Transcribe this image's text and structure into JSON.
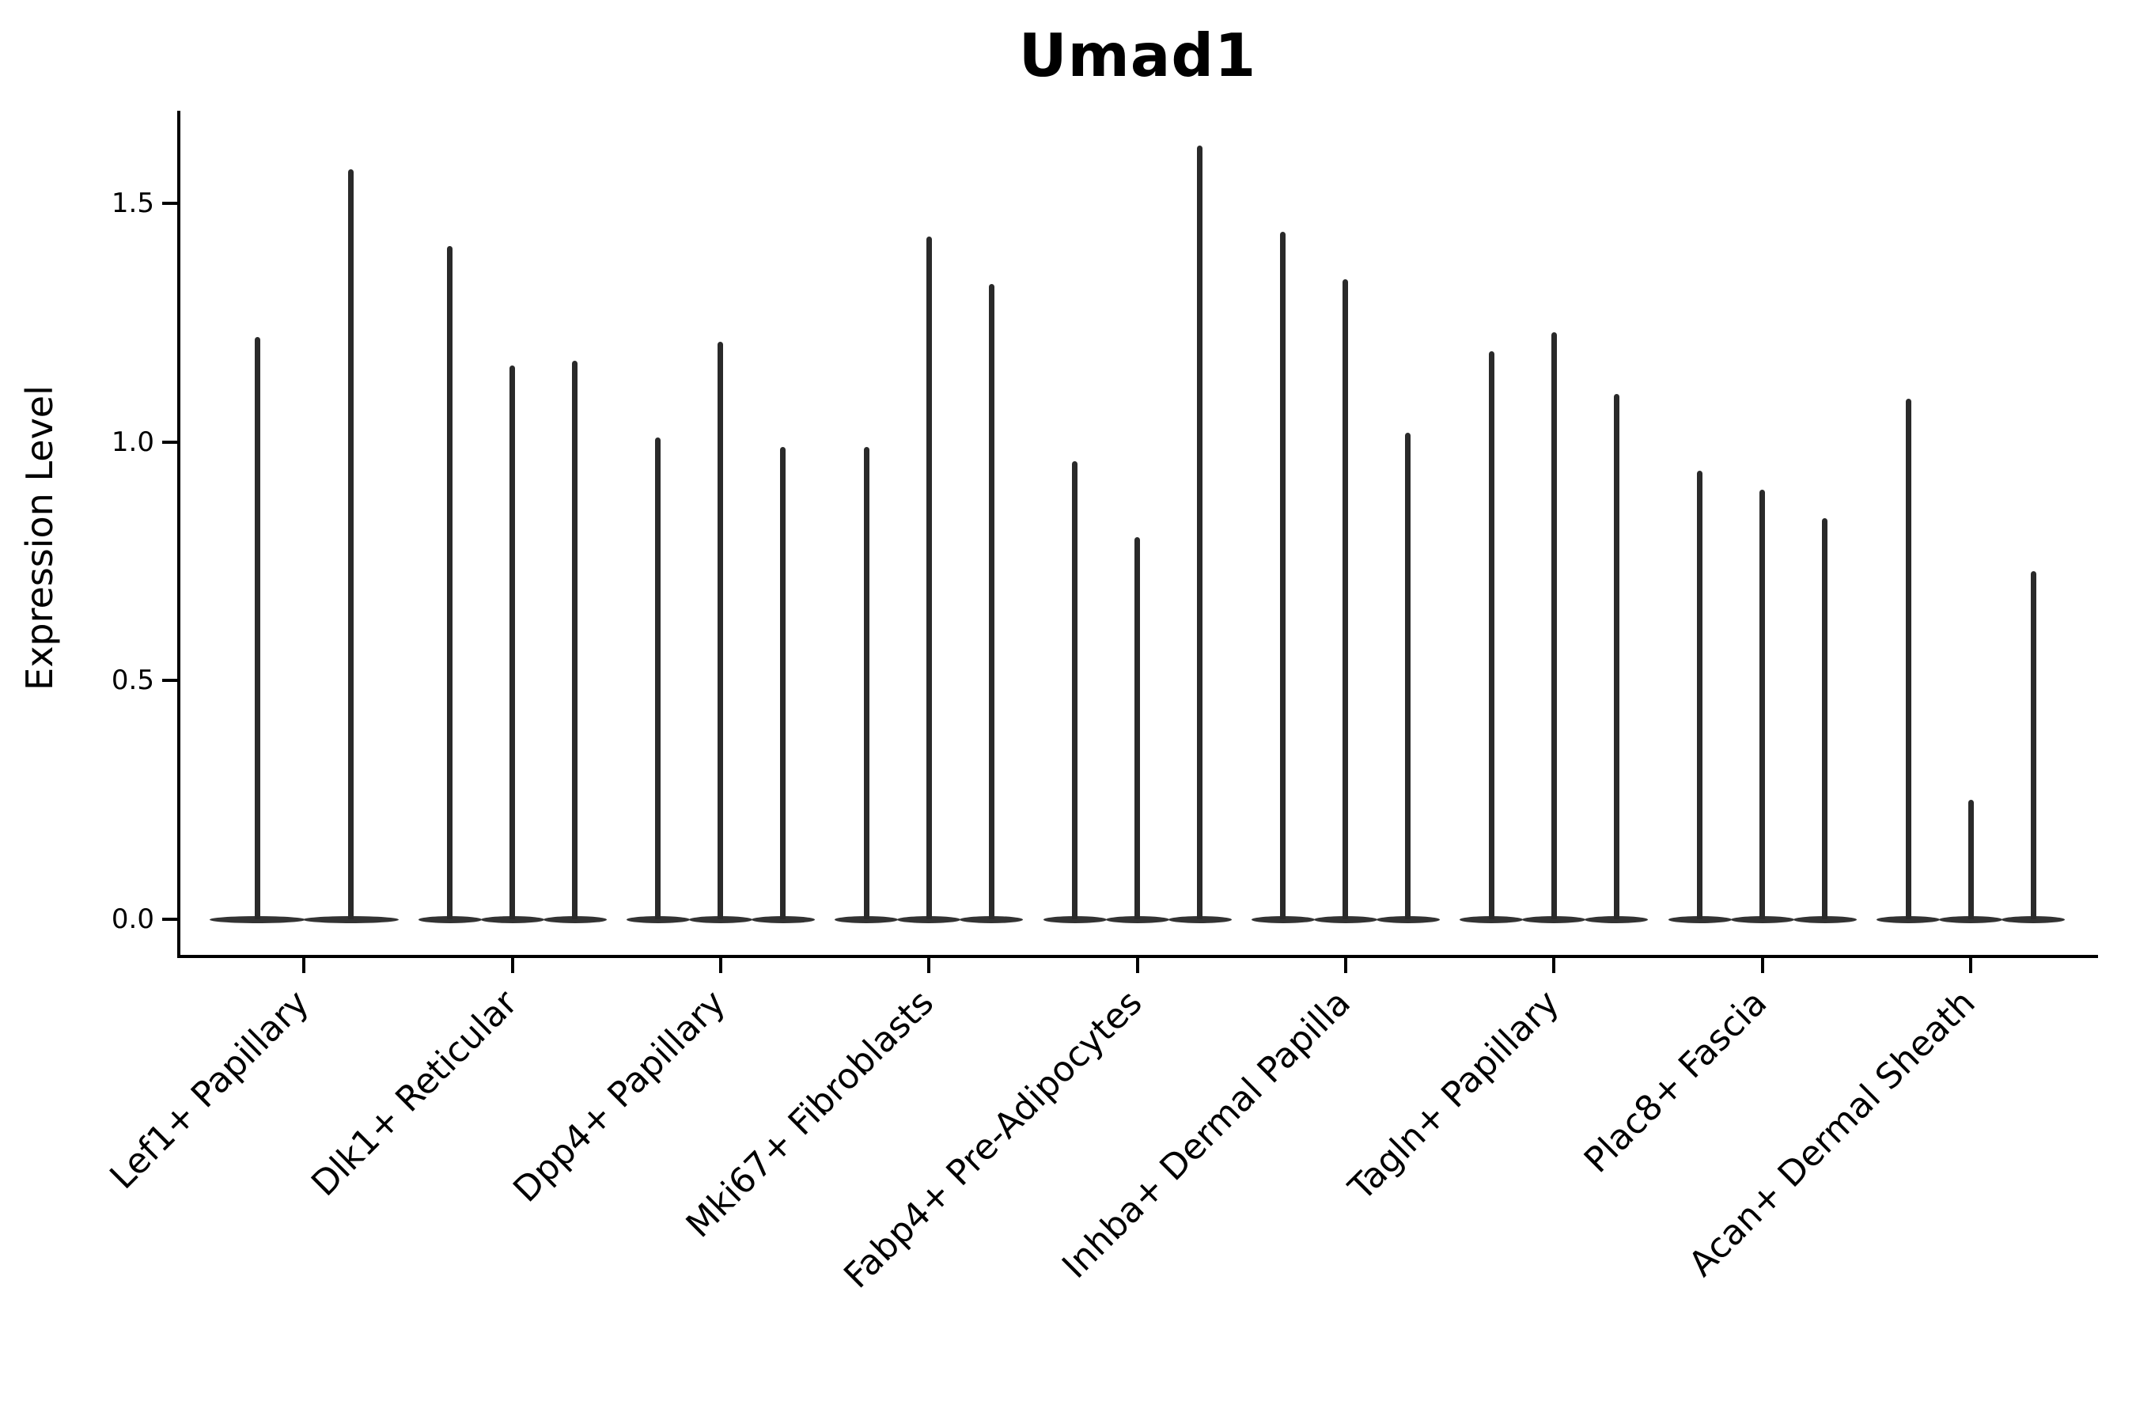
{
  "title": "Umad1",
  "y_axis": {
    "label": "Expression Level",
    "tick_labels": [
      "0.0",
      "0.5",
      "1.0",
      "1.5"
    ],
    "tick_values": [
      0.0,
      0.5,
      1.0,
      1.5
    ]
  },
  "chart_data": {
    "type": "violin",
    "title": "Umad1",
    "xlabel": "",
    "ylabel": "Expression Level",
    "ylim": [
      -0.08,
      1.69
    ],
    "grid": false,
    "legend": "none",
    "description": "Stacked-split violin plot of gene expression; each cell-type category shows narrow spike-like violins whose bulk sits at 0 with a thin tail up to the maximum expression value.",
    "categories": [
      "Lef1+ Papillary",
      "Dlk1+ Reticular",
      "Dpp4+ Papillary",
      "Mki67+ Fibroblasts",
      "Fabp4+ Pre-Adipocytes",
      "Inhba+ Dermal Papilla",
      "Tagln+ Papillary",
      "Plac8+ Fascia",
      "Acan+ Dermal Sheath"
    ],
    "series": [
      {
        "category": "Lef1+ Papillary",
        "violin_max_values": [
          1.22,
          1.57
        ]
      },
      {
        "category": "Dlk1+ Reticular",
        "violin_max_values": [
          1.41,
          1.16,
          1.17
        ]
      },
      {
        "category": "Dpp4+ Papillary",
        "violin_max_values": [
          1.01,
          1.21,
          0.99
        ]
      },
      {
        "category": "Mki67+ Fibroblasts",
        "violin_max_values": [
          0.99,
          1.43,
          1.33
        ]
      },
      {
        "category": "Fabp4+ Pre-Adipocytes",
        "violin_max_values": [
          0.96,
          0.8,
          1.62
        ]
      },
      {
        "category": "Inhba+ Dermal Papilla",
        "violin_max_values": [
          1.44,
          1.34,
          1.02
        ]
      },
      {
        "category": "Tagln+ Papillary",
        "violin_max_values": [
          1.19,
          1.23,
          1.1
        ]
      },
      {
        "category": "Plac8+ Fascia",
        "violin_max_values": [
          0.94,
          0.9,
          0.84
        ]
      },
      {
        "category": "Acan+ Dermal Sheath",
        "violin_max_values": [
          1.09,
          0.25,
          0.73
        ]
      }
    ],
    "baseline_value": 0.0
  }
}
